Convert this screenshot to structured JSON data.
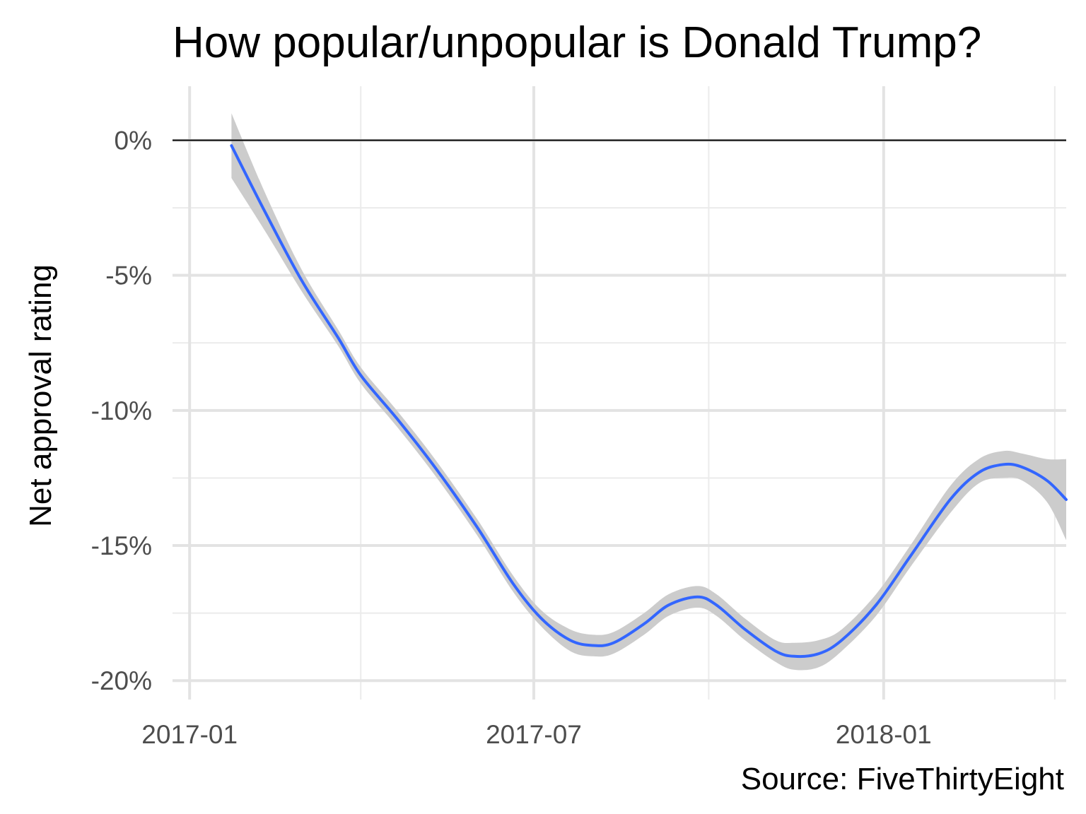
{
  "chart_data": {
    "type": "line",
    "title": "How popular/unpopular is Donald Trump?",
    "xlabel": "",
    "ylabel": "Net approval rating",
    "caption": "Source: FiveThirtyEight",
    "x_axis": {
      "type": "date",
      "range": [
        "2016-12-23",
        "2018-04-07"
      ],
      "ticks": [
        {
          "value": "2017-01-01",
          "label": "2017-01"
        },
        {
          "value": "2017-07-01",
          "label": "2017-07"
        },
        {
          "value": "2018-01-01",
          "label": "2018-01"
        }
      ],
      "minor_ticks": [
        "2017-04-01",
        "2017-10-01",
        "2018-04-01"
      ]
    },
    "y_axis": {
      "range": [
        -20.7,
        2.0
      ],
      "ticks": [
        {
          "value": 0,
          "label": "0%"
        },
        {
          "value": -5,
          "label": "-5%"
        },
        {
          "value": -10,
          "label": "-10%"
        },
        {
          "value": -15,
          "label": "-15%"
        },
        {
          "value": -20,
          "label": "-20%"
        }
      ],
      "minor_ticks": [
        -2.5,
        -7.5,
        -12.5,
        -17.5
      ]
    },
    "reference_line": {
      "y": 0,
      "color": "#000000"
    },
    "grid": true,
    "legend": "none",
    "series": [
      {
        "color": "#3366ff",
        "band_color": "#cccccc",
        "points": [
          {
            "x": "2017-01-23",
            "y": -0.2,
            "lo": -1.4,
            "hi": 1.0
          },
          {
            "x": "2017-02-10",
            "y": -2.7,
            "lo": -3.4,
            "hi": -2.0
          },
          {
            "x": "2017-03-01",
            "y": -5.2,
            "lo": -5.6,
            "hi": -4.8
          },
          {
            "x": "2017-03-20",
            "y": -7.3,
            "lo": -7.6,
            "hi": -7.0
          },
          {
            "x": "2017-04-01",
            "y": -8.7,
            "lo": -9.0,
            "hi": -8.4
          },
          {
            "x": "2017-04-20",
            "y": -10.3,
            "lo": -10.6,
            "hi": -10.0
          },
          {
            "x": "2017-05-10",
            "y": -12.1,
            "lo": -12.4,
            "hi": -11.8
          },
          {
            "x": "2017-06-01",
            "y": -14.3,
            "lo": -14.6,
            "hi": -14.0
          },
          {
            "x": "2017-06-20",
            "y": -16.4,
            "lo": -16.7,
            "hi": -16.1
          },
          {
            "x": "2017-07-05",
            "y": -17.7,
            "lo": -18.0,
            "hi": -17.4
          },
          {
            "x": "2017-07-20",
            "y": -18.5,
            "lo": -18.9,
            "hi": -18.1
          },
          {
            "x": "2017-08-01",
            "y": -18.7,
            "lo": -19.1,
            "hi": -18.3
          },
          {
            "x": "2017-08-12",
            "y": -18.6,
            "lo": -19.0,
            "hi": -18.2
          },
          {
            "x": "2017-08-28",
            "y": -17.9,
            "lo": -18.3,
            "hi": -17.5
          },
          {
            "x": "2017-09-10",
            "y": -17.2,
            "lo": -17.6,
            "hi": -16.8
          },
          {
            "x": "2017-09-25",
            "y": -16.9,
            "lo": -17.3,
            "hi": -16.5
          },
          {
            "x": "2017-10-05",
            "y": -17.2,
            "lo": -17.6,
            "hi": -16.8
          },
          {
            "x": "2017-10-20",
            "y": -18.1,
            "lo": -18.5,
            "hi": -17.7
          },
          {
            "x": "2017-11-05",
            "y": -18.9,
            "lo": -19.3,
            "hi": -18.5
          },
          {
            "x": "2017-11-15",
            "y": -19.1,
            "lo": -19.6,
            "hi": -18.6
          },
          {
            "x": "2017-11-28",
            "y": -19.0,
            "lo": -19.5,
            "hi": -18.5
          },
          {
            "x": "2017-12-10",
            "y": -18.5,
            "lo": -18.9,
            "hi": -18.1
          },
          {
            "x": "2017-12-28",
            "y": -17.2,
            "lo": -17.6,
            "hi": -16.8
          },
          {
            "x": "2018-01-15",
            "y": -15.4,
            "lo": -15.8,
            "hi": -15.0
          },
          {
            "x": "2018-02-05",
            "y": -13.3,
            "lo": -13.8,
            "hi": -12.8
          },
          {
            "x": "2018-02-20",
            "y": -12.3,
            "lo": -12.7,
            "hi": -11.8
          },
          {
            "x": "2018-03-05",
            "y": -12.0,
            "lo": -12.5,
            "hi": -11.5
          },
          {
            "x": "2018-03-15",
            "y": -12.1,
            "lo": -12.6,
            "hi": -11.6
          },
          {
            "x": "2018-03-28",
            "y": -12.6,
            "lo": -13.4,
            "hi": -11.8
          },
          {
            "x": "2018-04-07",
            "y": -13.3,
            "lo": -14.8,
            "hi": -11.8
          }
        ]
      }
    ]
  }
}
